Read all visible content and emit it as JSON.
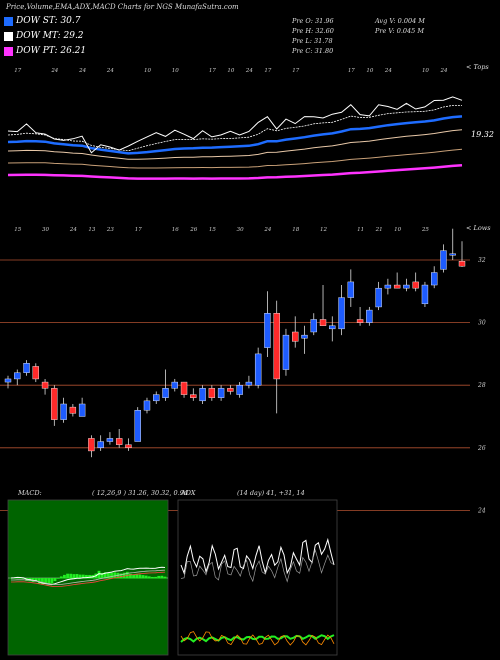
{
  "header": {
    "title": "Price,Volume,EMA,ADX,MACD Charts for NGS MunafaSutra.com"
  },
  "legend": [
    {
      "label": "DOW ST: 30.7",
      "color": "#1e6cff"
    },
    {
      "label": "DOW MT: 29.2",
      "color": "#ffffff"
    },
    {
      "label": "DOW PT: 26.21",
      "color": "#ff33ff"
    }
  ],
  "quote": {
    "open": "Pre O: 31.96",
    "high": "Pre H: 32.60",
    "low": "Pre L: 31.78",
    "close": "Pre C: 31.80",
    "avg_volume": "Avg V: 0.004 M",
    "volume": "Pre V: 0.045 M"
  },
  "chart_data": [
    {
      "type": "line",
      "name": "price-ema",
      "last_label": "19.32",
      "corner_label": "< Tops"
    },
    {
      "type": "candlestick",
      "name": "price-candles",
      "yticks": [
        32,
        30,
        28,
        26,
        24
      ],
      "corner_label": "< Lows",
      "candles": [
        {
          "o": 28.1,
          "h": 28.3,
          "l": 27.9,
          "c": 28.2
        },
        {
          "o": 28.2,
          "h": 28.5,
          "l": 28.0,
          "c": 28.4
        },
        {
          "o": 28.4,
          "h": 28.8,
          "l": 28.3,
          "c": 28.7
        },
        {
          "o": 28.6,
          "h": 28.7,
          "l": 28.1,
          "c": 28.2
        },
        {
          "o": 28.1,
          "h": 28.2,
          "l": 27.7,
          "c": 27.9
        },
        {
          "o": 27.9,
          "h": 28.0,
          "l": 26.7,
          "c": 26.9
        },
        {
          "o": 26.9,
          "h": 27.6,
          "l": 26.8,
          "c": 27.4
        },
        {
          "o": 27.3,
          "h": 27.4,
          "l": 27.0,
          "c": 27.1
        },
        {
          "o": 27.0,
          "h": 27.6,
          "l": 27.0,
          "c": 27.4
        },
        {
          "o": 26.3,
          "h": 26.4,
          "l": 25.7,
          "c": 25.9
        },
        {
          "o": 26.0,
          "h": 26.4,
          "l": 25.9,
          "c": 26.2
        },
        {
          "o": 26.2,
          "h": 26.5,
          "l": 26.1,
          "c": 26.3
        },
        {
          "o": 26.3,
          "h": 26.6,
          "l": 26.0,
          "c": 26.1
        },
        {
          "o": 26.1,
          "h": 26.3,
          "l": 25.9,
          "c": 26.0
        },
        {
          "o": 26.2,
          "h": 27.3,
          "l": 26.2,
          "c": 27.2
        },
        {
          "o": 27.2,
          "h": 27.6,
          "l": 27.1,
          "c": 27.5
        },
        {
          "o": 27.5,
          "h": 27.8,
          "l": 27.4,
          "c": 27.7
        },
        {
          "o": 27.6,
          "h": 28.5,
          "l": 27.5,
          "c": 27.9
        },
        {
          "o": 27.9,
          "h": 28.2,
          "l": 27.8,
          "c": 28.1
        },
        {
          "o": 28.1,
          "h": 28.1,
          "l": 27.6,
          "c": 27.7
        },
        {
          "o": 27.7,
          "h": 27.9,
          "l": 27.5,
          "c": 27.6
        },
        {
          "o": 27.5,
          "h": 28.0,
          "l": 27.4,
          "c": 27.9
        },
        {
          "o": 27.9,
          "h": 28.0,
          "l": 27.5,
          "c": 27.6
        },
        {
          "o": 27.6,
          "h": 28.0,
          "l": 27.5,
          "c": 27.9
        },
        {
          "o": 27.9,
          "h": 28.0,
          "l": 27.7,
          "c": 27.8
        },
        {
          "o": 27.7,
          "h": 28.1,
          "l": 27.6,
          "c": 28.0
        },
        {
          "o": 28.0,
          "h": 28.3,
          "l": 27.9,
          "c": 28.1
        },
        {
          "o": 28.0,
          "h": 29.2,
          "l": 27.9,
          "c": 29.0
        },
        {
          "o": 29.2,
          "h": 31.0,
          "l": 28.9,
          "c": 30.3
        },
        {
          "o": 30.3,
          "h": 30.7,
          "l": 27.1,
          "c": 28.2
        },
        {
          "o": 28.5,
          "h": 29.8,
          "l": 28.3,
          "c": 29.6
        },
        {
          "o": 29.7,
          "h": 30.2,
          "l": 29.2,
          "c": 29.4
        },
        {
          "o": 29.5,
          "h": 29.9,
          "l": 29.0,
          "c": 29.6
        },
        {
          "o": 29.7,
          "h": 30.3,
          "l": 29.6,
          "c": 30.1
        },
        {
          "o": 30.1,
          "h": 31.2,
          "l": 29.9,
          "c": 29.9
        },
        {
          "o": 29.8,
          "h": 30.2,
          "l": 29.4,
          "c": 29.9
        },
        {
          "o": 29.8,
          "h": 31.2,
          "l": 29.6,
          "c": 30.8
        },
        {
          "o": 30.8,
          "h": 31.7,
          "l": 30.5,
          "c": 31.3
        },
        {
          "o": 30.1,
          "h": 30.5,
          "l": 29.9,
          "c": 30.0
        },
        {
          "o": 30.0,
          "h": 30.5,
          "l": 29.9,
          "c": 30.4
        },
        {
          "o": 30.5,
          "h": 31.3,
          "l": 30.4,
          "c": 31.1
        },
        {
          "o": 31.1,
          "h": 31.4,
          "l": 30.9,
          "c": 31.2
        },
        {
          "o": 31.2,
          "h": 31.6,
          "l": 31.1,
          "c": 31.1
        },
        {
          "o": 31.1,
          "h": 31.4,
          "l": 31.0,
          "c": 31.2
        },
        {
          "o": 31.3,
          "h": 31.6,
          "l": 31.0,
          "c": 31.1
        },
        {
          "o": 30.6,
          "h": 31.3,
          "l": 30.5,
          "c": 31.2
        },
        {
          "o": 31.2,
          "h": 31.8,
          "l": 31.1,
          "c": 31.6
        },
        {
          "o": 31.7,
          "h": 32.5,
          "l": 31.6,
          "c": 32.3
        },
        {
          "o": 32.2,
          "h": 33.0,
          "l": 32.0,
          "c": 32.2
        },
        {
          "o": 31.96,
          "h": 32.6,
          "l": 31.78,
          "c": 31.8
        }
      ]
    },
    {
      "type": "line",
      "name": "macd",
      "label": "MACD:",
      "params": "( 12,26,9 ) 31.26, 30.32, 0.94"
    },
    {
      "type": "line",
      "name": "adx",
      "label": "ADX",
      "params": "(14 day) 41, +31, 14"
    }
  ]
}
